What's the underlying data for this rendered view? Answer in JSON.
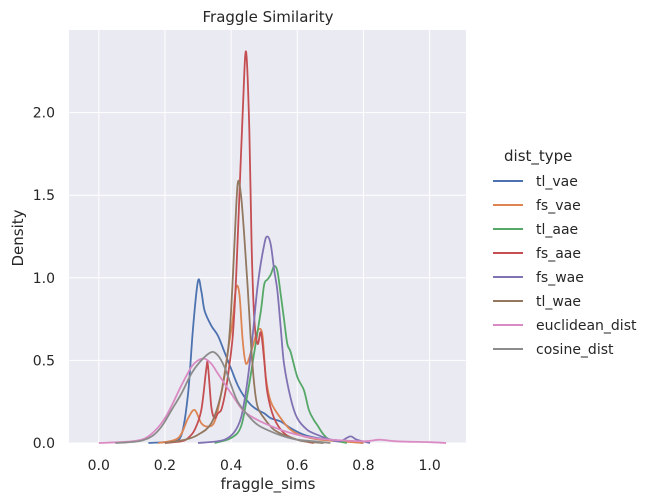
{
  "chart_data": {
    "type": "line",
    "title": "Fraggle Similarity",
    "xlabel": "fraggle_sims",
    "ylabel": "Density",
    "xlim": [
      -0.09,
      1.11
    ],
    "ylim": [
      0,
      2.5
    ],
    "xticks": [
      "0.0",
      "0.2",
      "0.4",
      "0.6",
      "0.8",
      "1.0"
    ],
    "xtick_values": [
      0.0,
      0.2,
      0.4,
      0.6,
      0.8,
      1.0
    ],
    "yticks": [
      "0.0",
      "0.5",
      "1.0",
      "1.5",
      "2.0"
    ],
    "ytick_values": [
      0.0,
      0.5,
      1.0,
      1.5,
      2.0
    ],
    "grid": true,
    "legend": {
      "title": "dist_type",
      "placement": "right outside"
    },
    "series": [
      {
        "name": "tl_vae",
        "color": "#4c72b0",
        "points": [
          [
            0.15,
            0
          ],
          [
            0.22,
            0.01
          ],
          [
            0.25,
            0.05
          ],
          [
            0.27,
            0.3
          ],
          [
            0.285,
            0.7
          ],
          [
            0.3,
            0.98
          ],
          [
            0.31,
            0.92
          ],
          [
            0.32,
            0.8
          ],
          [
            0.34,
            0.71
          ],
          [
            0.36,
            0.65
          ],
          [
            0.38,
            0.55
          ],
          [
            0.4,
            0.45
          ],
          [
            0.42,
            0.35
          ],
          [
            0.44,
            0.28
          ],
          [
            0.46,
            0.23
          ],
          [
            0.48,
            0.2
          ],
          [
            0.5,
            0.18
          ],
          [
            0.52,
            0.15
          ],
          [
            0.55,
            0.13
          ],
          [
            0.58,
            0.09
          ],
          [
            0.62,
            0.05
          ],
          [
            0.66,
            0.03
          ],
          [
            0.7,
            0.02
          ],
          [
            0.75,
            0.01
          ],
          [
            0.8,
            0
          ]
        ]
      },
      {
        "name": "fs_vae",
        "color": "#dd8452",
        "points": [
          [
            0.18,
            0
          ],
          [
            0.24,
            0.03
          ],
          [
            0.27,
            0.15
          ],
          [
            0.29,
            0.2
          ],
          [
            0.31,
            0.12
          ],
          [
            0.33,
            0.1
          ],
          [
            0.35,
            0.13
          ],
          [
            0.37,
            0.3
          ],
          [
            0.39,
            0.55
          ],
          [
            0.405,
            0.75
          ],
          [
            0.415,
            0.94
          ],
          [
            0.425,
            0.9
          ],
          [
            0.435,
            0.62
          ],
          [
            0.445,
            0.48
          ],
          [
            0.46,
            0.55
          ],
          [
            0.475,
            0.65
          ],
          [
            0.485,
            0.69
          ],
          [
            0.495,
            0.65
          ],
          [
            0.505,
            0.4
          ],
          [
            0.52,
            0.25
          ],
          [
            0.55,
            0.15
          ],
          [
            0.58,
            0.08
          ],
          [
            0.62,
            0.04
          ],
          [
            0.67,
            0.02
          ],
          [
            0.73,
            0.01
          ],
          [
            0.8,
            0
          ]
        ]
      },
      {
        "name": "tl_aae",
        "color": "#55a868",
        "points": [
          [
            0.35,
            0
          ],
          [
            0.4,
            0.03
          ],
          [
            0.43,
            0.1
          ],
          [
            0.45,
            0.3
          ],
          [
            0.47,
            0.55
          ],
          [
            0.49,
            0.8
          ],
          [
            0.5,
            0.96
          ],
          [
            0.51,
            0.99
          ],
          [
            0.52,
            1.02
          ],
          [
            0.53,
            1.07
          ],
          [
            0.54,
            1.04
          ],
          [
            0.55,
            0.9
          ],
          [
            0.56,
            0.75
          ],
          [
            0.57,
            0.6
          ],
          [
            0.58,
            0.55
          ],
          [
            0.6,
            0.4
          ],
          [
            0.62,
            0.32
          ],
          [
            0.635,
            0.2
          ],
          [
            0.65,
            0.14
          ],
          [
            0.66,
            0.11
          ],
          [
            0.68,
            0.05
          ],
          [
            0.7,
            0.02
          ],
          [
            0.75,
            0
          ]
        ]
      },
      {
        "name": "fs_aae",
        "color": "#c44e52",
        "points": [
          [
            0.2,
            0
          ],
          [
            0.25,
            0.01
          ],
          [
            0.27,
            0.03
          ],
          [
            0.29,
            0.08
          ],
          [
            0.31,
            0.2
          ],
          [
            0.325,
            0.45
          ],
          [
            0.33,
            0.47
          ],
          [
            0.34,
            0.22
          ],
          [
            0.35,
            0.15
          ],
          [
            0.36,
            0.18
          ],
          [
            0.37,
            0.2
          ],
          [
            0.38,
            0.28
          ],
          [
            0.39,
            0.4
          ],
          [
            0.405,
            0.65
          ],
          [
            0.415,
            1.0
          ],
          [
            0.425,
            1.5
          ],
          [
            0.435,
            2.0
          ],
          [
            0.445,
            2.37
          ],
          [
            0.455,
            1.9
          ],
          [
            0.462,
            1.2
          ],
          [
            0.47,
            0.75
          ],
          [
            0.48,
            0.6
          ],
          [
            0.49,
            0.67
          ],
          [
            0.5,
            0.5
          ],
          [
            0.51,
            0.3
          ],
          [
            0.53,
            0.15
          ],
          [
            0.56,
            0.06
          ],
          [
            0.6,
            0.02
          ],
          [
            0.65,
            0
          ]
        ]
      },
      {
        "name": "fs_wae",
        "color": "#8172b3",
        "points": [
          [
            0.3,
            0
          ],
          [
            0.38,
            0.02
          ],
          [
            0.42,
            0.1
          ],
          [
            0.44,
            0.25
          ],
          [
            0.46,
            0.55
          ],
          [
            0.48,
            0.95
          ],
          [
            0.5,
            1.2
          ],
          [
            0.51,
            1.25
          ],
          [
            0.52,
            1.2
          ],
          [
            0.53,
            1.05
          ],
          [
            0.54,
            0.92
          ],
          [
            0.55,
            0.7
          ],
          [
            0.56,
            0.48
          ],
          [
            0.58,
            0.27
          ],
          [
            0.6,
            0.15
          ],
          [
            0.63,
            0.08
          ],
          [
            0.66,
            0.05
          ],
          [
            0.7,
            0.02
          ],
          [
            0.73,
            0.01
          ],
          [
            0.76,
            0.04
          ],
          [
            0.78,
            0.02
          ],
          [
            0.82,
            0
          ]
        ]
      },
      {
        "name": "tl_wae",
        "color": "#937860",
        "points": [
          [
            0.2,
            0
          ],
          [
            0.26,
            0.02
          ],
          [
            0.3,
            0.05
          ],
          [
            0.34,
            0.12
          ],
          [
            0.37,
            0.3
          ],
          [
            0.39,
            0.55
          ],
          [
            0.4,
            0.8
          ],
          [
            0.41,
            1.2
          ],
          [
            0.42,
            1.57
          ],
          [
            0.43,
            1.5
          ],
          [
            0.44,
            1.25
          ],
          [
            0.45,
            0.95
          ],
          [
            0.46,
            0.6
          ],
          [
            0.47,
            0.35
          ],
          [
            0.48,
            0.22
          ],
          [
            0.5,
            0.15
          ],
          [
            0.53,
            0.08
          ],
          [
            0.57,
            0.04
          ],
          [
            0.62,
            0.01
          ],
          [
            0.68,
            0
          ]
        ]
      },
      {
        "name": "euclidean_dist",
        "color": "#da8bc3",
        "points": [
          [
            0.0,
            0
          ],
          [
            0.1,
            0.01
          ],
          [
            0.15,
            0.04
          ],
          [
            0.2,
            0.15
          ],
          [
            0.25,
            0.35
          ],
          [
            0.28,
            0.46
          ],
          [
            0.3,
            0.5
          ],
          [
            0.32,
            0.51
          ],
          [
            0.34,
            0.48
          ],
          [
            0.36,
            0.42
          ],
          [
            0.38,
            0.36
          ],
          [
            0.4,
            0.3
          ],
          [
            0.42,
            0.24
          ],
          [
            0.44,
            0.19
          ],
          [
            0.47,
            0.15
          ],
          [
            0.5,
            0.12
          ],
          [
            0.55,
            0.08
          ],
          [
            0.6,
            0.05
          ],
          [
            0.65,
            0.03
          ],
          [
            0.7,
            0.02
          ],
          [
            0.8,
            0.01
          ],
          [
            0.85,
            0.02
          ],
          [
            0.9,
            0.01
          ],
          [
            1.0,
            0.005
          ],
          [
            1.05,
            0
          ]
        ]
      },
      {
        "name": "cosine_dist",
        "color": "#8c8c8c",
        "points": [
          [
            0.05,
            0
          ],
          [
            0.12,
            0.01
          ],
          [
            0.16,
            0.04
          ],
          [
            0.19,
            0.1
          ],
          [
            0.22,
            0.2
          ],
          [
            0.25,
            0.3
          ],
          [
            0.28,
            0.42
          ],
          [
            0.31,
            0.5
          ],
          [
            0.34,
            0.55
          ],
          [
            0.36,
            0.53
          ],
          [
            0.38,
            0.46
          ],
          [
            0.4,
            0.35
          ],
          [
            0.42,
            0.25
          ],
          [
            0.45,
            0.17
          ],
          [
            0.48,
            0.11
          ],
          [
            0.52,
            0.07
          ],
          [
            0.56,
            0.04
          ],
          [
            0.6,
            0.02
          ],
          [
            0.65,
            0.01
          ],
          [
            0.7,
            0
          ]
        ]
      }
    ]
  }
}
